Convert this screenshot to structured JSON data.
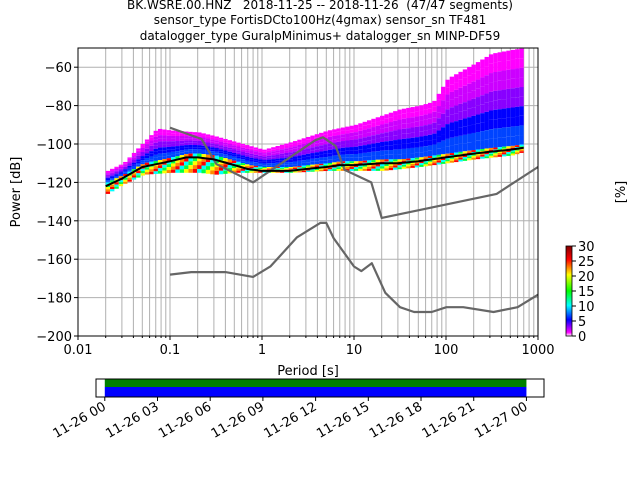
{
  "title": {
    "line1": "BK.WSRE.00.HNZ   2018-11-25 -- 2018-11-26  (47/47 segments)",
    "line2": "sensor_type FortisDCto100Hz(4gmax) sensor_sn TF481",
    "line3": "datalogger_type GuralpMinimus+ datalogger_sn MINP-DF59"
  },
  "chart_data": {
    "type": "heatmap",
    "xlabel": "Period [s]",
    "ylabel": "Power [dB]",
    "xscale": "log",
    "xlim": [
      0.01,
      1000
    ],
    "ylim": [
      -200,
      -50
    ],
    "x_ticks": [
      "0.01",
      "0.1",
      "1",
      "10",
      "100",
      "1000"
    ],
    "y_ticks": [
      "−200",
      "−180",
      "−160",
      "−140",
      "−120",
      "−100",
      "−80",
      "−60"
    ],
    "grid": true,
    "colorbar": {
      "label": "[%]",
      "range": [
        0,
        30
      ],
      "ticks": [
        "0",
        "5",
        "10",
        "15",
        "20",
        "25",
        "30"
      ]
    },
    "mean_curve": {
      "name": "mean",
      "color": "#000000",
      "x": [
        0.02,
        0.03,
        0.05,
        0.08,
        0.1,
        0.15,
        0.2,
        0.3,
        0.5,
        0.7,
        1,
        2,
        3,
        5,
        7,
        10,
        20,
        30,
        50,
        70,
        100,
        200,
        300,
        500,
        700
      ],
      "y": [
        -122,
        -118,
        -112,
        -110,
        -109,
        -107,
        -107,
        -108,
        -111,
        -113,
        -114,
        -114,
        -113,
        -112,
        -111,
        -111,
        -110,
        -110,
        -109,
        -108,
        -107,
        -105,
        -104,
        -103,
        -102
      ]
    },
    "pdf_upper_edge": {
      "x": [
        0.02,
        0.03,
        0.05,
        0.07,
        0.1,
        0.2,
        0.3,
        0.5,
        1,
        2,
        5,
        10,
        20,
        30,
        50,
        70,
        100,
        200,
        300,
        500,
        700
      ],
      "y": [
        -114,
        -110,
        -99,
        -92,
        -93,
        -94,
        -96,
        -99,
        -103,
        -99,
        -93,
        -90,
        -85,
        -82,
        -80,
        -78,
        -66,
        -58,
        -53,
        -51,
        -50
      ]
    },
    "pdf_lower_edge": {
      "x": [
        0.02,
        0.03,
        0.05,
        0.1,
        0.2,
        0.3,
        0.5,
        1,
        2,
        5,
        10,
        20,
        50,
        100,
        200,
        500,
        700
      ],
      "y": [
        -126,
        -121,
        -116,
        -115,
        -115,
        -116,
        -115,
        -115,
        -115,
        -114,
        -114,
        -114,
        -112,
        -110,
        -108,
        -106,
        -104
      ]
    },
    "nhnm": {
      "color": "#666666",
      "x": [
        0.1,
        0.22,
        0.32,
        0.8,
        3.8,
        4.6,
        6.3,
        7.9,
        15.4,
        20,
        354.8,
        1000
      ],
      "y": [
        -91.5,
        -97.4,
        -110.5,
        -120,
        -98,
        -96.5,
        -101,
        -113.5,
        -120,
        -138.5,
        -126,
        -112
      ]
    },
    "nlnm": {
      "color": "#666666",
      "x": [
        0.1,
        0.17,
        0.4,
        0.8,
        1.24,
        2.4,
        4.3,
        5,
        6,
        10,
        12,
        15.6,
        21.9,
        31.6,
        45,
        70,
        101,
        154,
        328,
        600,
        1000
      ],
      "y": [
        -168,
        -166.7,
        -166.7,
        -169.2,
        -163.7,
        -148.6,
        -141.1,
        -141.1,
        -149,
        -163.8,
        -166.2,
        -162.1,
        -177.5,
        -185,
        -187.5,
        -187.5,
        -185,
        -185,
        -187.5,
        -185,
        -178.5
      ]
    },
    "coverage": {
      "time_ticks": [
        "11-26 00",
        "11-26 03",
        "11-26 06",
        "11-26 09",
        "11-26 12",
        "11-26 15",
        "11-26 18",
        "11-26 21",
        "11-27 00"
      ],
      "range_hours": [
        -0.5,
        25
      ],
      "data_hours": [
        0,
        24
      ],
      "colors": {
        "data": "#0000ff",
        "segments": "#008000"
      }
    }
  }
}
